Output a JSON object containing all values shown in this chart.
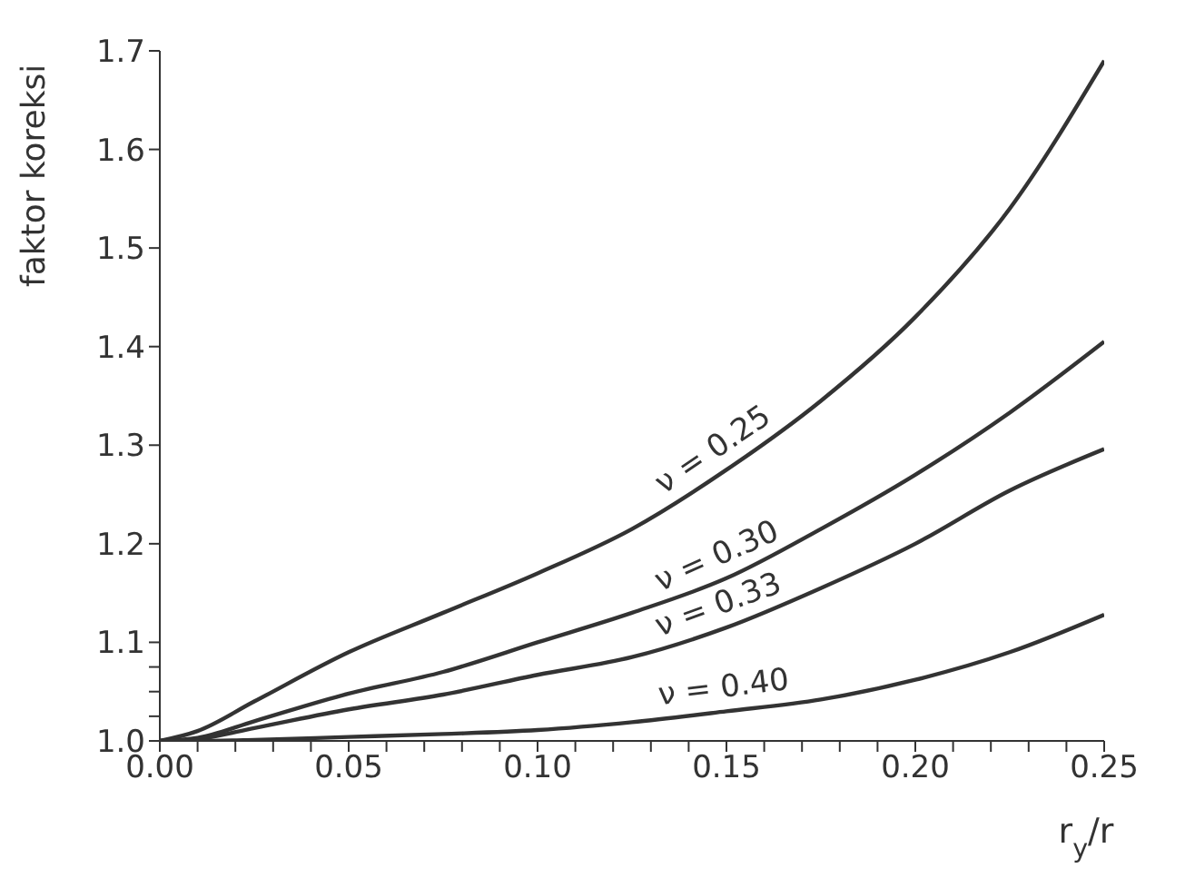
{
  "chart_data": {
    "type": "line",
    "xlabel": "r$_{y}$/r",
    "ylabel": "faktor koreksi",
    "marker": "none",
    "line_style": "solid",
    "x": [
      0,
      0.01,
      0.025,
      0.05,
      0.075,
      0.1,
      0.125,
      0.15,
      0.175,
      0.2,
      0.225,
      0.25
    ],
    "series": [
      {
        "name": "ν = 0.25",
        "color": "#333333",
        "values": [
          1.0,
          1.01,
          1.04,
          1.09,
          1.13,
          1.17,
          1.215,
          1.275,
          1.345,
          1.43,
          1.54,
          1.69
        ]
      },
      {
        "name": "ν = 0.30",
        "color": "#333333",
        "values": [
          1.0,
          1.003,
          1.02,
          1.048,
          1.07,
          1.1,
          1.13,
          1.165,
          1.215,
          1.27,
          1.333,
          1.405
        ]
      },
      {
        "name": "ν = 0.33",
        "color": "#333333",
        "values": [
          1.0,
          1.002,
          1.013,
          1.032,
          1.047,
          1.067,
          1.085,
          1.115,
          1.155,
          1.2,
          1.254,
          1.296
        ]
      },
      {
        "name": "ν = 0.40",
        "color": "#333333",
        "values": [
          1.0,
          1.0,
          1.001,
          1.004,
          1.007,
          1.011,
          1.019,
          1.03,
          1.042,
          1.062,
          1.09,
          1.128
        ]
      }
    ],
    "xlim": [
      0,
      0.25
    ],
    "ylim": [
      1.0,
      1.7
    ],
    "xticks": [
      {
        "value": 0,
        "label": "0.00"
      },
      {
        "value": 0.01,
        "label": null
      },
      {
        "value": 0.02,
        "label": null
      },
      {
        "value": 0.03,
        "label": null
      },
      {
        "value": 0.04,
        "label": null
      },
      {
        "value": 0.05,
        "label": "0.05"
      },
      {
        "value": 0.06,
        "label": null
      },
      {
        "value": 0.07,
        "label": null
      },
      {
        "value": 0.08,
        "label": null
      },
      {
        "value": 0.09,
        "label": null
      },
      {
        "value": 0.1,
        "label": "0.10"
      },
      {
        "value": 0.11,
        "label": null
      },
      {
        "value": 0.12,
        "label": null
      },
      {
        "value": 0.13,
        "label": null
      },
      {
        "value": 0.14,
        "label": null
      },
      {
        "value": 0.15,
        "label": "0.15"
      },
      {
        "value": 0.16,
        "label": null
      },
      {
        "value": 0.17,
        "label": null
      },
      {
        "value": 0.18,
        "label": null
      },
      {
        "value": 0.19,
        "label": null
      },
      {
        "value": 0.2,
        "label": "0.20"
      },
      {
        "value": 0.21,
        "label": null
      },
      {
        "value": 0.22,
        "label": null
      },
      {
        "value": 0.23,
        "label": null
      },
      {
        "value": 0.24,
        "label": null
      },
      {
        "value": 0.25,
        "label": "0.25"
      }
    ],
    "yticks": [
      {
        "value": 1.0,
        "label": "1.0"
      },
      {
        "value": 1.025,
        "label": null
      },
      {
        "value": 1.05,
        "label": null
      },
      {
        "value": 1.075,
        "label": null
      },
      {
        "value": 1.1,
        "label": "1.1"
      },
      {
        "value": 1.2,
        "label": "1.2"
      },
      {
        "value": 1.3,
        "label": "1.3"
      },
      {
        "value": 1.4,
        "label": "1.4"
      },
      {
        "value": 1.5,
        "label": "1.5"
      },
      {
        "value": 1.6,
        "label": "1.6"
      },
      {
        "value": 1.7,
        "label": "1.7"
      }
    ]
  }
}
